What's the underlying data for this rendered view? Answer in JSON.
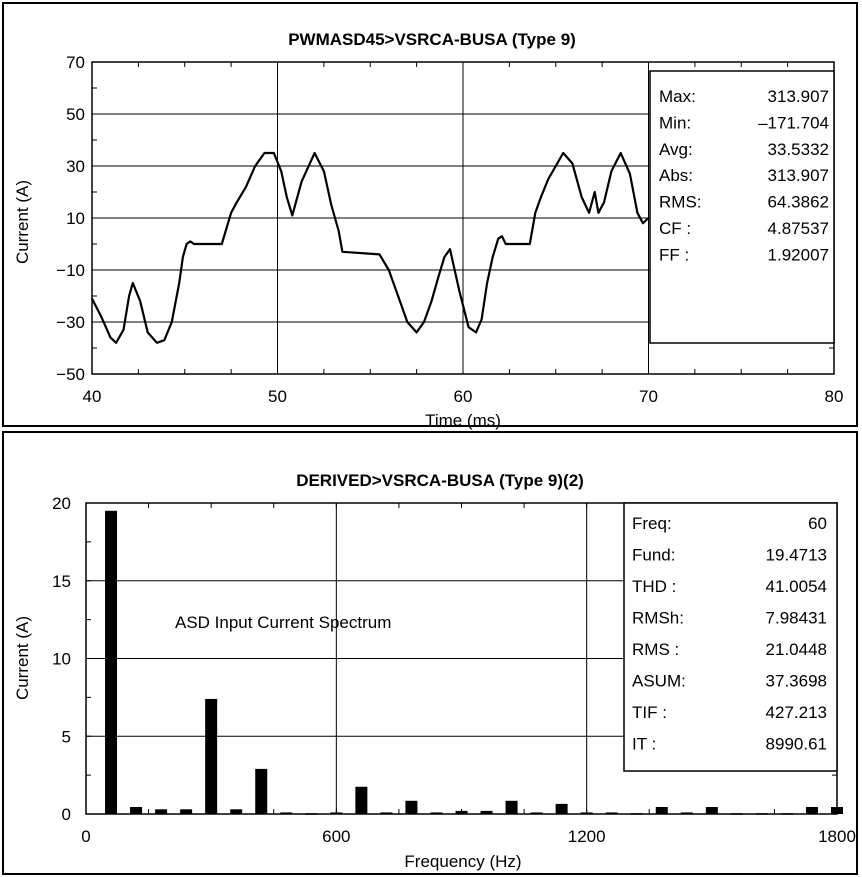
{
  "chart_data": [
    {
      "type": "line",
      "title": "PWMASD45>VSRCA-BUSA  (Type 9)",
      "xlabel": "Time (ms)",
      "ylabel": "Current (A)",
      "xlim": [
        40,
        80
      ],
      "ylim": [
        -50,
        70
      ],
      "xticks": [
        "40",
        "50",
        "60",
        "70",
        "80"
      ],
      "yticks": [
        "70",
        "50",
        "30",
        "10",
        "−10",
        "−30",
        "−50"
      ],
      "grid": true,
      "series": [
        {
          "x": [
            40.0,
            40.5,
            41.0,
            41.3,
            41.7,
            42.0,
            42.2,
            42.6,
            43.0,
            43.5,
            43.9,
            44.3,
            44.7,
            44.9,
            45.1,
            45.3,
            45.5,
            47.0,
            47.5,
            47.8,
            48.3,
            48.8,
            49.3,
            49.8,
            50.2,
            50.5,
            50.8,
            51.3,
            52.0,
            52.5,
            52.9,
            53.3,
            53.5,
            55.5,
            56.0,
            56.5,
            57.0,
            57.5,
            57.9,
            58.3,
            58.7,
            59.0,
            59.3,
            59.8,
            60.3,
            60.7,
            61.0,
            61.3,
            61.6,
            61.9,
            62.1,
            62.3,
            63.6,
            63.9,
            64.2,
            64.6,
            65.0,
            65.4,
            65.9,
            66.4,
            66.8,
            67.1,
            67.3,
            67.6,
            68.0,
            68.5,
            69.0,
            69.4,
            69.7,
            70.0
          ],
          "y": [
            -21,
            -28,
            -36,
            -38,
            -33,
            -20,
            -15,
            -22,
            -34,
            -38,
            -37,
            -30,
            -15,
            -5,
            0,
            1,
            0,
            0,
            12,
            16,
            22,
            30,
            35,
            35,
            28,
            18,
            11,
            24,
            35,
            28,
            15,
            5,
            -3,
            -4,
            -10,
            -20,
            -30,
            -34,
            -30,
            -22,
            -12,
            -5,
            -2,
            -18,
            -32,
            -34,
            -29,
            -15,
            -5,
            2,
            3,
            0,
            0,
            12,
            18,
            25,
            30,
            35,
            31,
            18,
            12,
            20,
            12,
            16,
            28,
            35,
            27,
            12,
            8,
            10
          ]
        }
      ],
      "stats": [
        {
          "label": "Max:",
          "value": "313.907"
        },
        {
          "label": "Min:",
          "value": "–171.704"
        },
        {
          "label": "Avg:",
          "value": "33.5332"
        },
        {
          "label": "Abs:",
          "value": "313.907"
        },
        {
          "label": "RMS:",
          "value": "64.3862"
        },
        {
          "label": "CF :",
          "value": "4.87537"
        },
        {
          "label": "FF :",
          "value": "1.92007"
        }
      ]
    },
    {
      "type": "bar",
      "title": "DERIVED>VSRCA-BUSA  (Type 9)(2)",
      "xlabel": "Frequency (Hz)",
      "ylabel": "Current (A)",
      "xlim": [
        0,
        1800
      ],
      "ylim": [
        0,
        20
      ],
      "xticks": [
        "0",
        "600",
        "1200",
        "1800"
      ],
      "yticks": [
        "20",
        "15",
        "10",
        "5",
        "0"
      ],
      "grid": true,
      "annotation": "ASD Input Current Spectrum",
      "x": [
        60,
        120,
        180,
        240,
        300,
        360,
        420,
        480,
        540,
        600,
        660,
        720,
        780,
        840,
        900,
        960,
        1020,
        1080,
        1140,
        1200,
        1260,
        1320,
        1380,
        1440,
        1500,
        1560,
        1620,
        1680,
        1740,
        1800
      ],
      "values": [
        19.5,
        0.45,
        0.3,
        0.3,
        7.4,
        0.3,
        2.9,
        0.1,
        0.05,
        0.1,
        1.75,
        0.1,
        0.85,
        0.1,
        0.2,
        0.2,
        0.85,
        0.1,
        0.65,
        0.1,
        0.1,
        0.05,
        0.45,
        0.1,
        0.45,
        0.05,
        0.05,
        0.05,
        0.45,
        0.45
      ],
      "stats": [
        {
          "label": "Freq:",
          "value": "60"
        },
        {
          "label": "Fund:",
          "value": "19.4713"
        },
        {
          "label": "THD :",
          "value": "41.0054"
        },
        {
          "label": "RMSh:",
          "value": "7.98431"
        },
        {
          "label": "RMS :",
          "value": "21.0448"
        },
        {
          "label": "ASUM:",
          "value": "37.3698"
        },
        {
          "label": "TIF :",
          "value": "427.213"
        },
        {
          "label": "IT  :",
          "value": "8990.61"
        }
      ]
    }
  ]
}
